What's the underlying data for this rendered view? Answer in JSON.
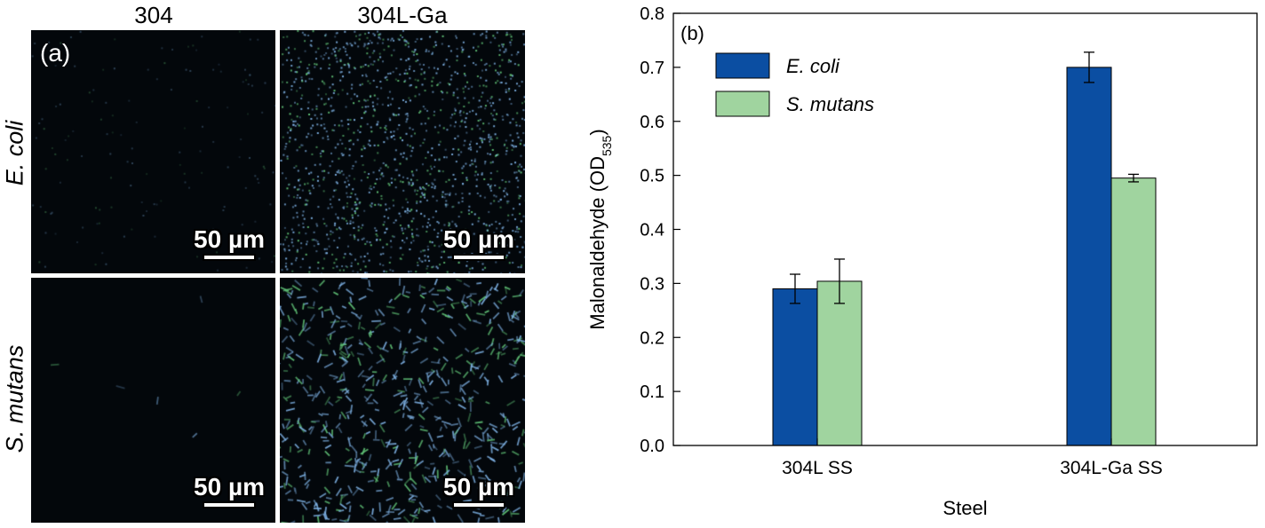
{
  "panel_a": {
    "label": "(a)",
    "columns": [
      "304",
      "304L-Ga"
    ],
    "rows": [
      "E. coli",
      "S. mutans"
    ],
    "scalebar": "50 µm",
    "colors": {
      "background": "#03070b",
      "cell_blue": "#7fb3e6",
      "cell_green": "#63c77a"
    }
  },
  "chart_data": {
    "type": "bar",
    "panel_label": "(b)",
    "categories": [
      "304L SS",
      "304L-Ga SS"
    ],
    "series": [
      {
        "name": "E. coli",
        "values": [
          0.29,
          0.7
        ],
        "errors": [
          0.027,
          0.028
        ],
        "color": "#0b4ea2"
      },
      {
        "name": "S. mutans",
        "values": [
          0.304,
          0.495
        ],
        "errors": [
          0.041,
          0.007
        ],
        "color": "#a0d49f"
      }
    ],
    "xlabel": "Steel",
    "ylabel_main": "Malonaldehyde (OD",
    "ylabel_sub": "535",
    "ylabel_end": ")",
    "ylim": [
      0.0,
      0.8
    ],
    "yticks": [
      "0.0",
      "0.1",
      "0.2",
      "0.3",
      "0.4",
      "0.5",
      "0.6",
      "0.7",
      "0.8"
    ],
    "legend_position": "top-left",
    "grid": false
  }
}
